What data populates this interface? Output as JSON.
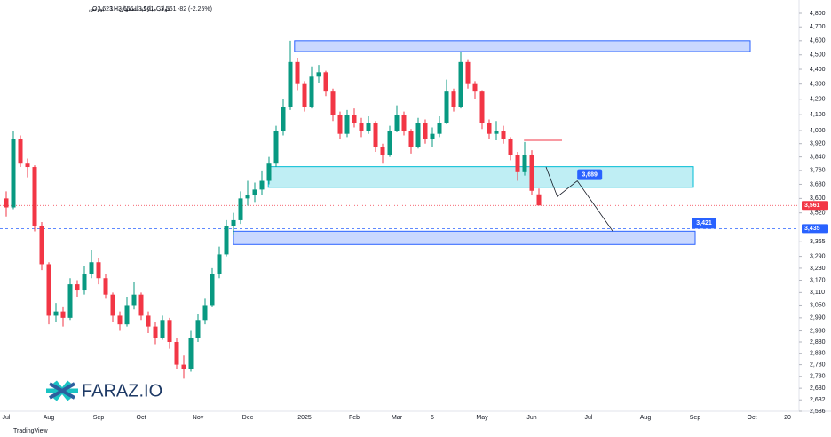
{
  "chart_data": {
    "type": "candlestick",
    "title": "فولاد مبارکه اصفهان · 1 · بورس",
    "ohlc_legend": [
      {
        "value": 3623,
        "label": "O3,623"
      },
      {
        "value": 3656,
        "label": "H3,656"
      },
      {
        "value": 3561,
        "label": "L3,561"
      },
      {
        "value": 3561,
        "label": "C3,561"
      },
      {
        "value": -82,
        "label": "-82 (-2.25%)"
      }
    ],
    "categories": [
      "Jul",
      null,
      null,
      null,
      null,
      null,
      "Aug",
      null,
      null,
      null,
      null,
      null,
      null,
      "Sep",
      null,
      null,
      null,
      null,
      null,
      "Oct",
      null,
      null,
      null,
      null,
      null,
      null,
      null,
      "Nov",
      null,
      null,
      null,
      null,
      null,
      null,
      "Dec",
      null,
      null,
      null,
      null,
      null,
      null,
      null,
      "2025",
      null,
      null,
      null,
      null,
      null,
      null,
      "Feb",
      null,
      null,
      null,
      null,
      null,
      "Mar",
      null,
      null,
      null,
      null,
      "6",
      null,
      null,
      null,
      null,
      null,
      null,
      "May",
      null,
      null,
      null,
      null,
      null,
      null,
      "Jun",
      null,
      null,
      null,
      null,
      null,
      null,
      null,
      "Jul",
      null,
      null,
      null,
      null,
      null,
      null,
      null,
      "Aug",
      null,
      null,
      null,
      null,
      null,
      null,
      "Sep",
      null,
      null,
      null,
      null,
      null,
      null,
      null,
      "Oct",
      null,
      null,
      null,
      null,
      "20"
    ],
    "open": [
      3600,
      3550,
      3950,
      3800,
      3780,
      3450,
      3250,
      3000,
      3020,
      2990,
      3150,
      3120,
      3200,
      3260,
      3180,
      3100,
      3000,
      2960,
      3050,
      3100,
      3000,
      2950,
      2900,
      2980,
      2880,
      2780,
      2760,
      2900,
      2980,
      3050,
      3200,
      3300,
      3450,
      3480,
      3600,
      3620,
      3650,
      3700,
      3800,
      4000,
      4150,
      4450,
      4300,
      4150,
      4350,
      4380,
      4250,
      4100,
      3980,
      4100,
      4050,
      4000,
      4050,
      3900,
      3850,
      4000,
      4100,
      4000,
      3900,
      4050,
      3950,
      3980,
      4050,
      4250,
      4150,
      4450,
      4300,
      4250,
      4050,
      3980,
      4000,
      3950,
      3850,
      3750,
      3850,
      3623,
      null,
      null,
      null,
      null,
      null,
      null,
      null,
      null,
      null,
      null,
      null,
      null,
      null,
      null,
      null,
      null,
      null,
      null,
      null,
      null,
      null,
      null,
      null,
      null,
      null,
      null,
      null,
      null,
      null,
      null,
      null,
      null,
      null,
      null,
      null
    ],
    "high": [
      3640,
      4000,
      3970,
      3830,
      3790,
      3470,
      3260,
      3060,
      3040,
      3180,
      3170,
      3240,
      3320,
      3280,
      3200,
      3110,
      3020,
      3090,
      3160,
      3110,
      3020,
      2970,
      3000,
      2990,
      2900,
      2820,
      2930,
      3010,
      3080,
      3230,
      3340,
      3480,
      3520,
      3640,
      3700,
      3690,
      3760,
      3840,
      4030,
      4200,
      4600,
      4480,
      4320,
      4420,
      4430,
      4390,
      4270,
      4120,
      4130,
      4140,
      4080,
      4090,
      4060,
      3920,
      4030,
      4160,
      4120,
      4010,
      4080,
      4070,
      4020,
      4090,
      4330,
      4270,
      4520,
      4470,
      4320,
      4260,
      4070,
      4060,
      4030,
      3960,
      3870,
      3930,
      3880,
      3656,
      null,
      null,
      null,
      null,
      null,
      null,
      null,
      null,
      null,
      null,
      null,
      null,
      null,
      null,
      null,
      null,
      null,
      null,
      null,
      null,
      null,
      null,
      null,
      null,
      null,
      null,
      null,
      null,
      null,
      null,
      null,
      null,
      null,
      null,
      null
    ],
    "low": [
      3500,
      3540,
      3780,
      3720,
      3420,
      3220,
      2960,
      2970,
      2950,
      2980,
      3090,
      3100,
      3180,
      3150,
      3080,
      2970,
      2930,
      2950,
      3030,
      2980,
      2920,
      2870,
      2890,
      2850,
      2760,
      2720,
      2750,
      2880,
      2960,
      3040,
      3180,
      3290,
      3400,
      3460,
      3560,
      3580,
      3620,
      3680,
      3780,
      3970,
      4130,
      4260,
      4120,
      4140,
      4310,
      4220,
      4060,
      3950,
      3960,
      4020,
      3960,
      3980,
      3870,
      3800,
      3840,
      3990,
      3970,
      3860,
      3890,
      3920,
      3900,
      3960,
      4040,
      4120,
      4140,
      4270,
      4200,
      4010,
      3950,
      3940,
      3920,
      3820,
      3700,
      3730,
      3620,
      3561,
      null,
      null,
      null,
      null,
      null,
      null,
      null,
      null,
      null,
      null,
      null,
      null,
      null,
      null,
      null,
      null,
      null,
      null,
      null,
      null,
      null,
      null,
      null,
      null,
      null,
      null,
      null,
      null,
      null,
      null,
      null,
      null,
      null,
      null,
      null
    ],
    "close": [
      3550,
      3950,
      3800,
      3780,
      3450,
      3250,
      3000,
      3020,
      2990,
      3150,
      3120,
      3200,
      3260,
      3180,
      3100,
      3000,
      2960,
      3050,
      3100,
      3000,
      2950,
      2900,
      2980,
      2880,
      2780,
      2760,
      2900,
      2980,
      3050,
      3200,
      3300,
      3450,
      3480,
      3600,
      3620,
      3650,
      3700,
      3800,
      4000,
      4150,
      4450,
      4300,
      4150,
      4350,
      4380,
      4250,
      4100,
      3980,
      4100,
      4050,
      4000,
      4050,
      3900,
      3850,
      4000,
      4100,
      4000,
      3900,
      4050,
      3950,
      3980,
      4050,
      4250,
      4150,
      4450,
      4300,
      4250,
      4050,
      3980,
      4000,
      3950,
      3850,
      3750,
      3850,
      3643,
      3561,
      null,
      null,
      null,
      null,
      null,
      null,
      null,
      null,
      null,
      null,
      null,
      null,
      null,
      null,
      null,
      null,
      null,
      null,
      null,
      null,
      null,
      null,
      null,
      null,
      null,
      null,
      null,
      null,
      null,
      null,
      null,
      null,
      null,
      null,
      null
    ],
    "up_color": "#089981",
    "down_color": "#f23645",
    "log_scale": true,
    "ylim": [
      2586,
      4800
    ],
    "yticks": [
      {
        "value": 4800,
        "label": "4,800"
      },
      {
        "value": 4700,
        "label": "4,700"
      },
      {
        "value": 4600,
        "label": "4,600"
      },
      {
        "value": 4500,
        "label": "4,500"
      },
      {
        "value": 4400,
        "label": "4,400"
      },
      {
        "value": 4300,
        "label": "4,300"
      },
      {
        "value": 4200,
        "label": "4,200"
      },
      {
        "value": 4100,
        "label": "4,100"
      },
      {
        "value": 4000,
        "label": "4,000"
      },
      {
        "value": 3920,
        "label": "3,920"
      },
      {
        "value": 3840,
        "label": "3,840"
      },
      {
        "value": 3760,
        "label": "3,760"
      },
      {
        "value": 3680,
        "label": "3,680"
      },
      {
        "value": 3600,
        "label": "3,600"
      },
      {
        "value": 3520,
        "label": "3,520"
      },
      {
        "value": 3365,
        "label": "3,365"
      },
      {
        "value": 3290,
        "label": "3,290"
      },
      {
        "value": 3230,
        "label": "3,230"
      },
      {
        "value": 3170,
        "label": "3,170"
      },
      {
        "value": 3110,
        "label": "3,110"
      },
      {
        "value": 3050,
        "label": "3,050"
      },
      {
        "value": 2990,
        "label": "2,990"
      },
      {
        "value": 2930,
        "label": "2,930"
      },
      {
        "value": 2880,
        "label": "2,880"
      },
      {
        "value": 2830,
        "label": "2,830"
      },
      {
        "value": 2780,
        "label": "2,780"
      },
      {
        "value": 2730,
        "label": "2,730"
      },
      {
        "value": 2680,
        "label": "2,680"
      },
      {
        "value": 2632,
        "label": "2,632"
      },
      {
        "value": 2586,
        "label": "2,586"
      }
    ],
    "zones": [
      {
        "x": [
          40.6,
          104.75
        ],
        "y": [
          4523,
          4600
        ],
        "color": "#2962ff"
      },
      {
        "x": [
          36.9,
          96.75
        ],
        "y": [
          3663,
          3782
        ],
        "color": "#00bcd4"
      },
      {
        "x": [
          32,
          97
        ],
        "y": [
          3351,
          3421
        ],
        "color": "#2962ff"
      }
    ],
    "level_line": {
      "x": [
        72.9,
        78.25
      ],
      "value": 3940,
      "color": "#f23645"
    },
    "projection": {
      "x": [
        76,
        77.6,
        80.4,
        85.4
      ],
      "y": [
        3780,
        3610,
        3700,
        3421
      ]
    },
    "callouts": [
      {
        "x": 80.4,
        "value": 3689,
        "label": "3,689"
      },
      {
        "x": 96.5,
        "value": 3421,
        "label": "3,421"
      }
    ],
    "price_lines": [
      {
        "value": 3561,
        "label": "3,561",
        "color": "#f23645",
        "dashed": false
      },
      {
        "value": 3435,
        "label": "3,435",
        "color": "#2962ff",
        "dashed": true
      }
    ],
    "watermark": "FARAZ.IO",
    "footer": "TradingView"
  }
}
